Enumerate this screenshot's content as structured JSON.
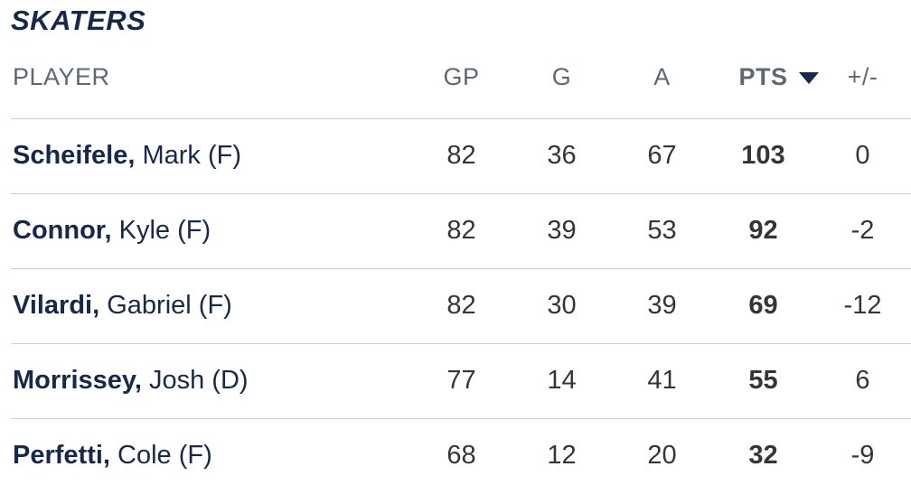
{
  "title": "SKATERS",
  "colors": {
    "navy": "#16294a",
    "header_gray": "#5c6873",
    "number_gray": "#333538",
    "divider": "#cfcfcf",
    "background": "#ffffff"
  },
  "icons": {
    "sort_desc": "filled-triangle-down"
  },
  "table": {
    "columns": [
      {
        "key": "player",
        "label": "PLAYER"
      },
      {
        "key": "gp",
        "label": "GP"
      },
      {
        "key": "g",
        "label": "G"
      },
      {
        "key": "a",
        "label": "A"
      },
      {
        "key": "pts",
        "label": "PTS",
        "sorted": true,
        "sort_direction": "desc"
      },
      {
        "key": "plus_minus",
        "label": "+/-"
      }
    ],
    "rows": [
      {
        "name_bold": "Scheifele,",
        "name_rest": " Mark (F)",
        "gp": 82,
        "g": 36,
        "a": 67,
        "pts": 103,
        "plus_minus": 0
      },
      {
        "name_bold": "Connor,",
        "name_rest": " Kyle (F)",
        "gp": 82,
        "g": 39,
        "a": 53,
        "pts": 92,
        "plus_minus": -2
      },
      {
        "name_bold": "Vilardi,",
        "name_rest": " Gabriel (F)",
        "gp": 82,
        "g": 30,
        "a": 39,
        "pts": 69,
        "plus_minus": -12
      },
      {
        "name_bold": "Morrissey,",
        "name_rest": " Josh (D)",
        "gp": 77,
        "g": 14,
        "a": 41,
        "pts": 55,
        "plus_minus": 6
      },
      {
        "name_bold": "Perfetti,",
        "name_rest": " Cole (F)",
        "gp": 68,
        "g": 12,
        "a": 20,
        "pts": 32,
        "plus_minus": -9
      }
    ]
  }
}
